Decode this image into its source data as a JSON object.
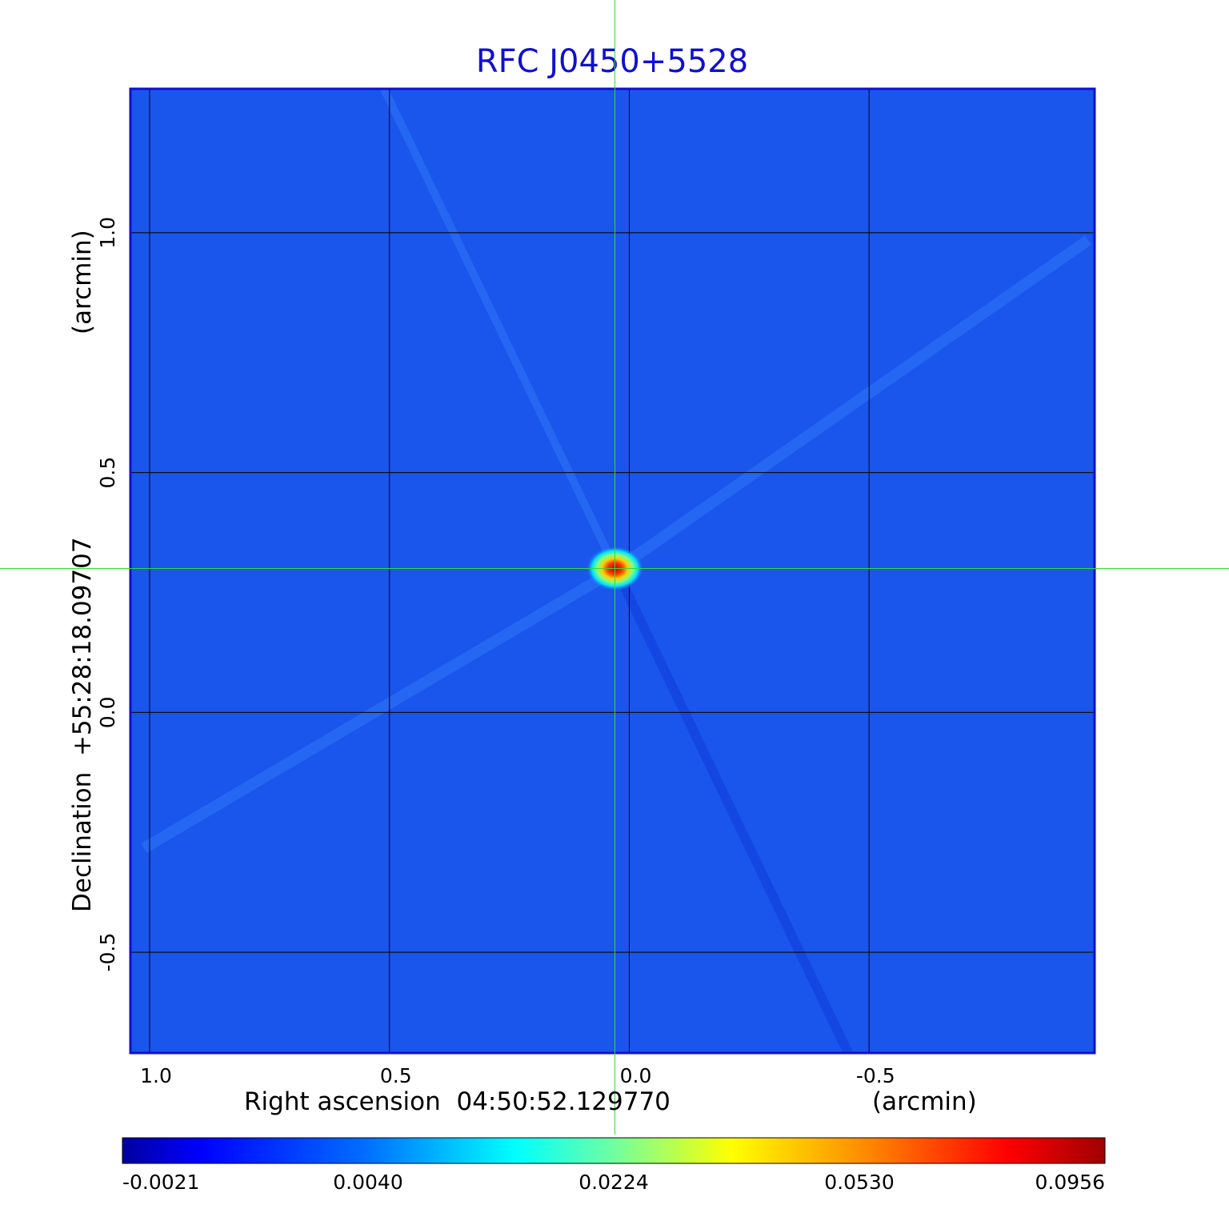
{
  "chart_data": {
    "type": "heatmap",
    "title": "RFC J0450+5528",
    "xlabel": "Right ascension  04:50:52.129770",
    "xunit": "(arcmin)",
    "ylabel": "Declination  +55:28:18.09707",
    "yunit": "(arcmin)",
    "xlim": [
      1.04,
      -0.97
    ],
    "ylim": [
      -0.71,
      1.3
    ],
    "x_ticks": [
      {
        "value": 1.0,
        "label": "1.0"
      },
      {
        "value": 0.5,
        "label": "0.5"
      },
      {
        "value": 0.0,
        "label": "0.0"
      },
      {
        "value": -0.5,
        "label": "-0.5"
      }
    ],
    "y_ticks": [
      {
        "value": 1.0,
        "label": "1.0"
      },
      {
        "value": 0.5,
        "label": "0.5"
      },
      {
        "value": 0.0,
        "label": "0.0"
      },
      {
        "value": -0.5,
        "label": "-0.5"
      }
    ],
    "grid": true,
    "crosshair": {
      "x": 0.03,
      "y": 0.3
    },
    "source_peak": {
      "x": 0.03,
      "y": 0.3,
      "value": 0.0956
    },
    "colorbar": {
      "position": "bottom",
      "ticks": [
        "-0.0021",
        "0.0040",
        "0.0224",
        "0.0530",
        "0.0956"
      ],
      "range": [
        -0.0021,
        0.0956
      ],
      "colors": [
        "#0000a0",
        "#0000ff",
        "#00ffff",
        "#ffff00",
        "#ff0000",
        "#a00000"
      ]
    },
    "background_color": "#1a55ec"
  }
}
